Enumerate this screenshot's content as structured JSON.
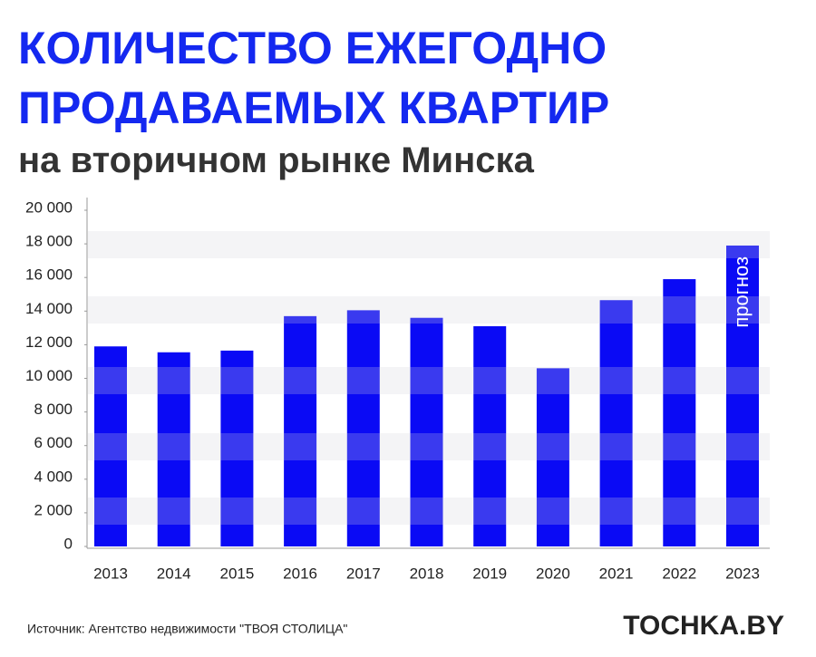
{
  "chart_data": {
    "type": "bar",
    "title": [
      "КОЛИЧЕСТВО ЕЖЕГОДНО",
      "ПРОДАВАЕМЫХ КВАРТИР"
    ],
    "subtitle": "на вторичном рынке Минска",
    "categories": [
      "2013",
      "2014",
      "2015",
      "2016",
      "2017",
      "2018",
      "2019",
      "2020",
      "2021",
      "2022",
      "2023"
    ],
    "values": [
      11900,
      11550,
      11650,
      13700,
      14050,
      13600,
      13100,
      10600,
      14650,
      15900,
      17900
    ],
    "color": "#0a0af5",
    "ylim": [
      0,
      20000
    ],
    "yticks": [
      0,
      {
        "value": 2000,
        "label": "2 000"
      },
      {
        "value": 4000,
        "label": "4 000"
      },
      {
        "value": 6000,
        "label": "6 000"
      },
      {
        "value": 8000,
        "label": "8 000"
      },
      {
        "value": 10000,
        "label": "10 000"
      },
      {
        "value": 12000,
        "label": "12 000"
      },
      {
        "value": 14000,
        "label": "14 000"
      },
      {
        "value": 16000,
        "label": "16 000"
      },
      {
        "value": 18000,
        "label": "18 000"
      },
      {
        "value": 20000,
        "label": "20 000"
      }
    ],
    "grid": false,
    "annotation": "прогноз",
    "source": "Источник: Агентство недвижимости \"ТВОЯ СТОЛИЦА\"",
    "logo": "TOCHKA.BY"
  }
}
